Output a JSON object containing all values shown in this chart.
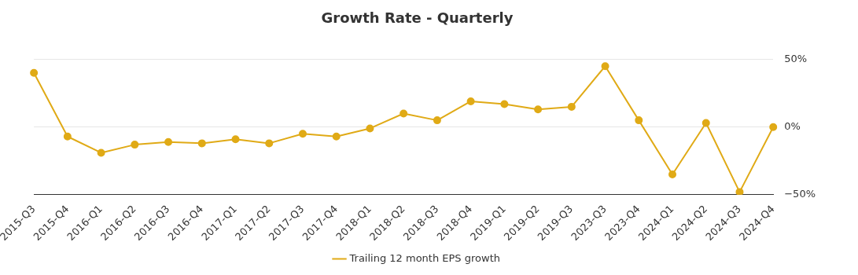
{
  "chart_data": {
    "type": "line",
    "title": "Growth Rate - Quarterly",
    "categories": [
      "2015-Q3",
      "2015-Q4",
      "2016-Q1",
      "2016-Q2",
      "2016-Q3",
      "2016-Q4",
      "2017-Q1",
      "2017-Q2",
      "2017-Q3",
      "2017-Q4",
      "2018-Q1",
      "2018-Q2",
      "2018-Q3",
      "2018-Q4",
      "2019-Q1",
      "2019-Q2",
      "2019-Q3",
      "2023-Q3",
      "2023-Q4",
      "2024-Q1",
      "2024-Q2",
      "2024-Q3",
      "2024-Q4"
    ],
    "series": [
      {
        "name": "Trailing 12 month EPS growth",
        "color": "#e0aa16",
        "values": [
          40,
          -7,
          -19,
          -13,
          -11,
          -12,
          -9,
          -12,
          -5,
          -7,
          -1,
          10,
          5,
          19,
          17,
          13,
          15,
          45,
          5,
          -35,
          3,
          -48,
          0
        ]
      }
    ],
    "ylim": [
      -50,
      50
    ],
    "yticks": [
      {
        "value": -50,
        "label": "−50%"
      },
      {
        "value": 0,
        "label": "0%"
      },
      {
        "value": 50,
        "label": "50%"
      }
    ],
    "grid": "y",
    "legend": "bottom",
    "marker": "circle",
    "line_style": "solid"
  }
}
